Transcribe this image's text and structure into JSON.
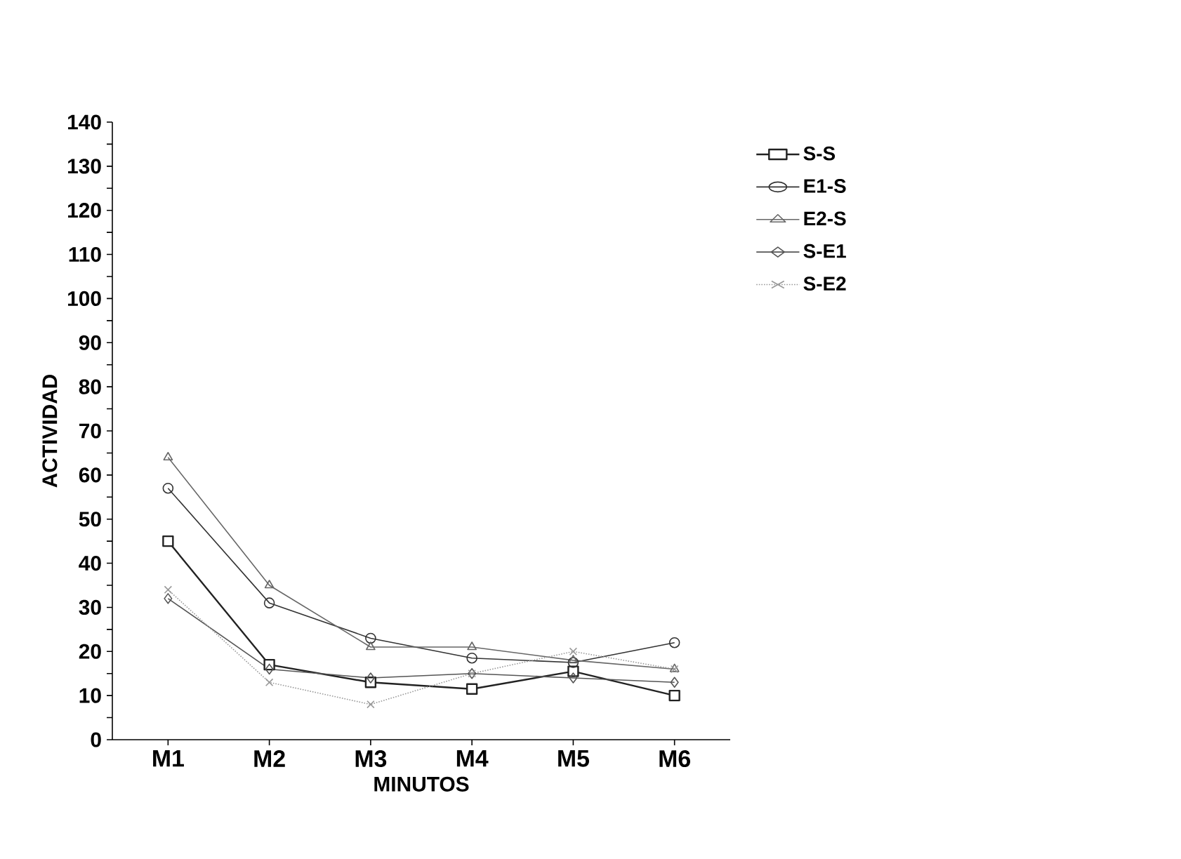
{
  "chart_data": {
    "type": "line",
    "xlabel": "MINUTOS",
    "ylabel": "ACTIVIDAD",
    "categories": [
      "M1",
      "M2",
      "M3",
      "M4",
      "M5",
      "M6"
    ],
    "series": [
      {
        "name": "S-S",
        "color": "#222222",
        "marker": "square",
        "line_style": "solid",
        "values": [
          45,
          17,
          13,
          11.5,
          15.5,
          10
        ]
      },
      {
        "name": "E1-S",
        "color": "#333333",
        "marker": "circle",
        "line_style": "solid",
        "values": [
          57,
          31,
          23,
          18.5,
          17.5,
          22
        ]
      },
      {
        "name": "E2-S",
        "color": "#666666",
        "marker": "triangle",
        "line_style": "solid",
        "values": [
          64,
          35,
          21,
          21,
          18,
          16
        ]
      },
      {
        "name": "S-E1",
        "color": "#555555",
        "marker": "diamond",
        "line_style": "solid",
        "values": [
          32,
          16,
          14,
          15,
          14,
          13
        ]
      },
      {
        "name": "S-E2",
        "color": "#999999",
        "marker": "cross",
        "line_style": "dotted",
        "values": [
          34,
          13,
          8,
          15,
          20,
          16
        ]
      }
    ],
    "ylim": [
      0,
      140
    ],
    "yticks": [
      0,
      {
        "value": 5,
        "label": null
      },
      10,
      {
        "value": 15,
        "label": null
      },
      20,
      {
        "value": 25,
        "label": null
      },
      30,
      {
        "value": 35,
        "label": null
      },
      40,
      {
        "value": 45,
        "label": null
      },
      50,
      {
        "value": 55,
        "label": null
      },
      60,
      {
        "value": 65,
        "label": null
      },
      70,
      {
        "value": 75,
        "label": null
      },
      80,
      {
        "value": 85,
        "label": null
      },
      90,
      {
        "value": 95,
        "label": null
      },
      100,
      {
        "value": 105,
        "label": null
      },
      110,
      {
        "value": 115,
        "label": null
      },
      120,
      {
        "value": 125,
        "label": null
      },
      130,
      {
        "value": 135,
        "label": null
      },
      140
    ],
    "grid": false,
    "legend": "top right"
  }
}
